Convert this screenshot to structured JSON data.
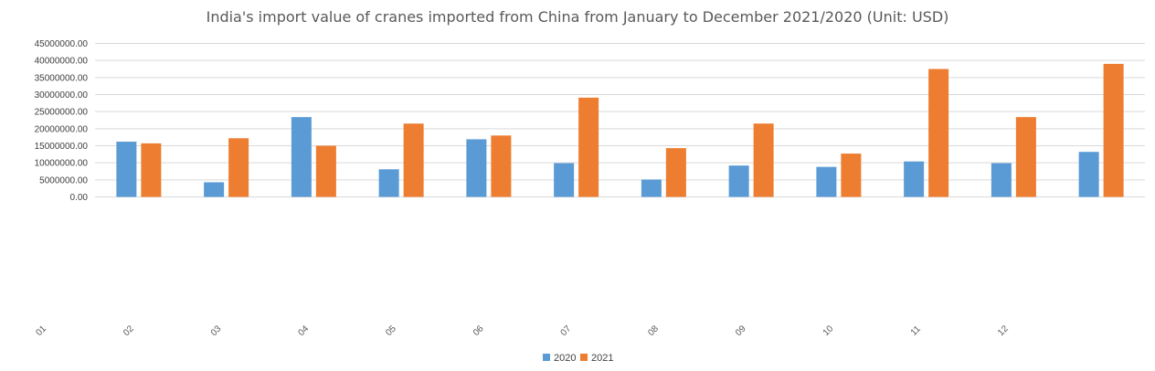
{
  "chart_data": {
    "type": "bar",
    "title": "India's import value of cranes imported from China from January to December 2021/2020 (Unit: USD)",
    "categories": [
      "01",
      "02",
      "03",
      "04",
      "05",
      "06",
      "07",
      "08",
      "09",
      "10",
      "11",
      "12"
    ],
    "series": [
      {
        "name": "2020",
        "color": "#5b9bd5",
        "values": [
          16200000,
          4300000,
          23400000,
          8100000,
          16900000,
          9900000,
          5100000,
          9200000,
          8800000,
          10400000,
          9900000,
          13200000
        ]
      },
      {
        "name": "2021",
        "color": "#ed7d31",
        "values": [
          15700000,
          17200000,
          15000000,
          21500000,
          18000000,
          29100000,
          14300000,
          21500000,
          12700000,
          37500000,
          23400000,
          39000000
        ]
      }
    ],
    "y_ticks": [
      "0.00",
      "5000000.00",
      "10000000.00",
      "15000000.00",
      "20000000.00",
      "25000000.00",
      "30000000.00",
      "35000000.00",
      "40000000.00",
      "45000000.00"
    ],
    "ylim": [
      0,
      45000000
    ],
    "grid": true,
    "legend_position": "bottom"
  }
}
